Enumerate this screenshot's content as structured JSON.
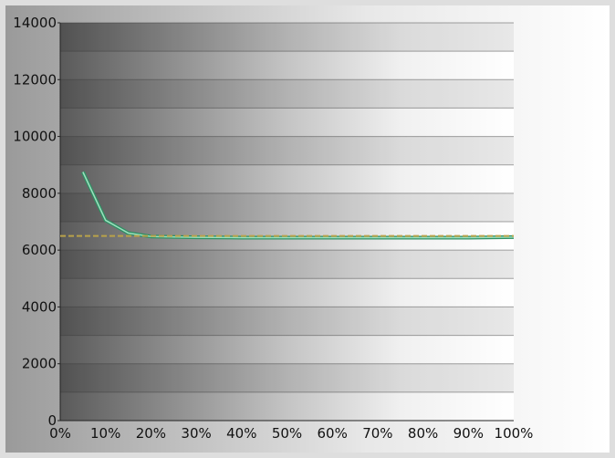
{
  "chart_data": {
    "type": "line",
    "title": "",
    "xlabel": "",
    "ylabel": "",
    "x_categories": [
      "0%",
      "10%",
      "20%",
      "30%",
      "40%",
      "50%",
      "60%",
      "70%",
      "80%",
      "90%",
      "100%"
    ],
    "y_ticks": [
      "0",
      "2000",
      "4000",
      "6000",
      "8000",
      "10000",
      "12000",
      "14000"
    ],
    "xlim": [
      0,
      100
    ],
    "ylim": [
      0,
      14000
    ],
    "grid": true,
    "legend": "none",
    "series": [
      {
        "key": "measured",
        "color": "#2f8f63",
        "highlight": "#9de0bf",
        "dashed": false,
        "x": [
          5,
          10,
          15,
          20,
          30,
          40,
          50,
          60,
          70,
          80,
          90,
          100
        ],
        "y": [
          8750,
          7050,
          6600,
          6480,
          6450,
          6440,
          6440,
          6440,
          6440,
          6440,
          6440,
          6460
        ]
      },
      {
        "key": "target",
        "color": "#b9a24a",
        "dashed": true,
        "x": [
          0,
          100
        ],
        "y": [
          6500,
          6500
        ]
      }
    ]
  }
}
